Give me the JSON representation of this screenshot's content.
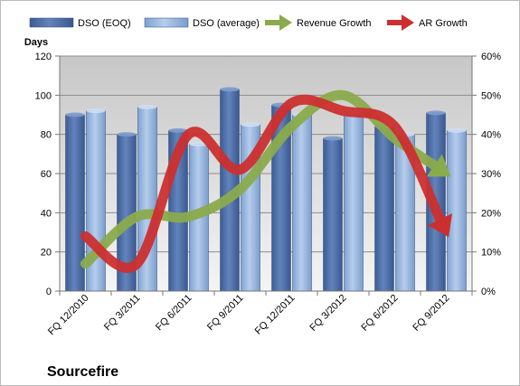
{
  "chart_data": {
    "type": "bar",
    "title": "Sourcefire",
    "ylabel_left": "Days",
    "ylim_left": [
      0,
      120
    ],
    "yticks_left": [
      "0",
      "20",
      "40",
      "60",
      "80",
      "100",
      "120"
    ],
    "ylim_right": [
      0,
      60
    ],
    "yticks_right": [
      "0%",
      "10%",
      "20%",
      "30%",
      "40%",
      "50%",
      "60%"
    ],
    "grid": true,
    "legend_position": "top",
    "categories": [
      "FQ 12/2010",
      "FQ 3/2011",
      "FQ 6/2011",
      "FQ 9/2011",
      "FQ 12/2011",
      "FQ 3/2012",
      "FQ 6/2012",
      "FQ 9/2012"
    ],
    "bar_series": [
      {
        "name": "DSO (EOQ)",
        "values": [
          90,
          80,
          82,
          103,
          95,
          78,
          84,
          91
        ],
        "color": "#4f6fa6"
      },
      {
        "name": "DSO (average)",
        "values": [
          92,
          94,
          75,
          85,
          90,
          92,
          80,
          82
        ],
        "color": "#93b4de"
      }
    ],
    "line_series": [
      {
        "name": "Revenue Growth",
        "axis": "right",
        "values": [
          7,
          19,
          19,
          26,
          42,
          50,
          39,
          30
        ],
        "unit": "%",
        "color": "#8aab4c"
      },
      {
        "name": "AR Growth",
        "axis": "right",
        "values": [
          14,
          7,
          40,
          31,
          48,
          46,
          42,
          15
        ],
        "unit": "%",
        "color": "#cc2f2f"
      }
    ]
  }
}
